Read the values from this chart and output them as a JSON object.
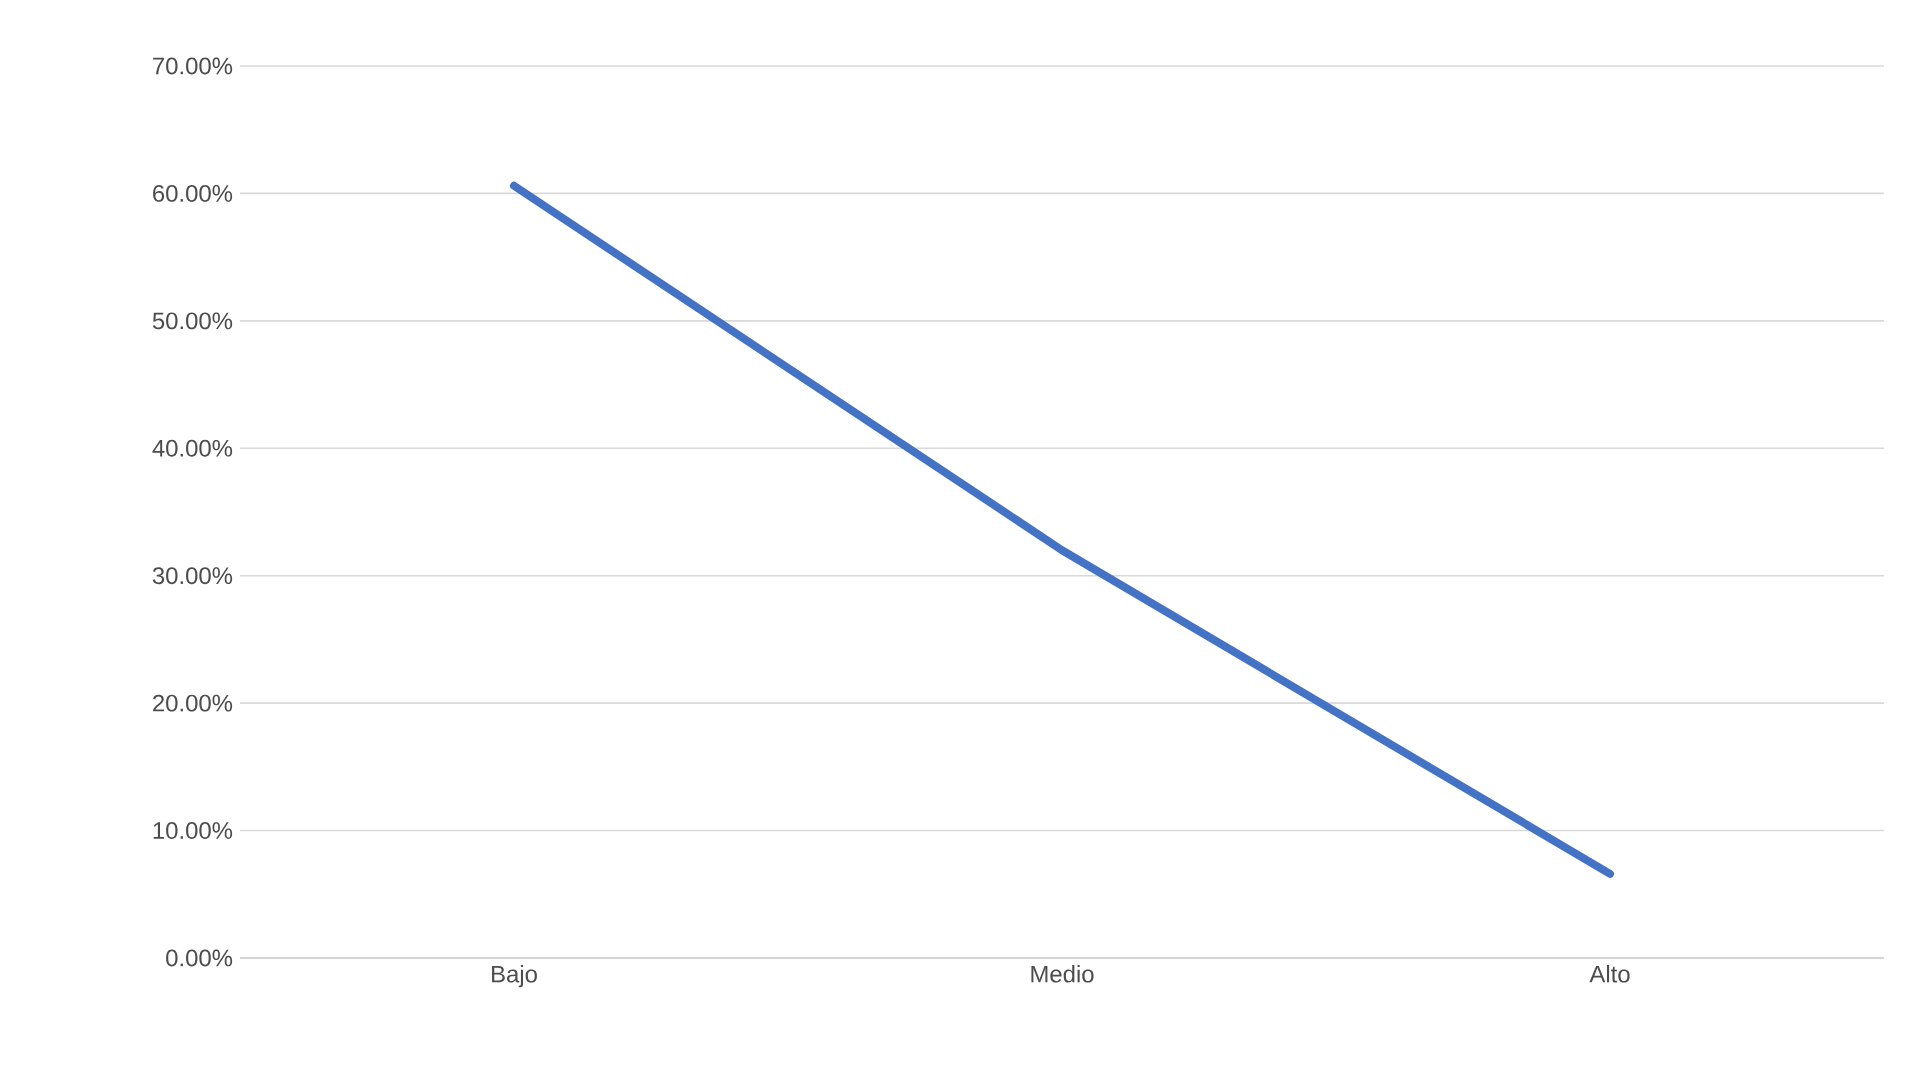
{
  "chart_data": {
    "type": "line",
    "categories": [
      "Bajo",
      "Medio",
      "Alto"
    ],
    "series": [
      {
        "color": "#4472c4",
        "values": [
          60.6,
          32.0,
          6.6
        ]
      }
    ],
    "ylim": [
      0,
      70
    ],
    "yticks": [
      {
        "value": 0,
        "label": "0.00%"
      },
      {
        "value": 10,
        "label": "10.00%"
      },
      {
        "value": 20,
        "label": "20.00%"
      },
      {
        "value": 30,
        "label": "30.00%"
      },
      {
        "value": 40,
        "label": "40.00%"
      },
      {
        "value": 50,
        "label": "50.00%"
      },
      {
        "value": 60,
        "label": "60.00%"
      },
      {
        "value": 70,
        "label": "70.00%"
      }
    ],
    "grid": "y",
    "marker": "none",
    "line_style": "solid"
  }
}
